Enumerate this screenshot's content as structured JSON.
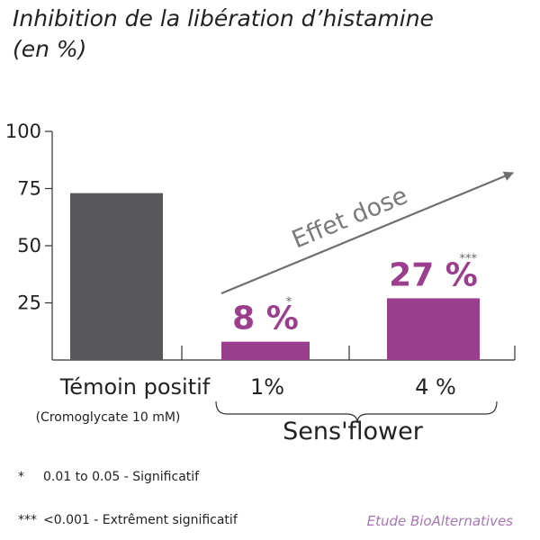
{
  "title": {
    "line1": "Inhibition de la libération d’histamine",
    "line2": "(en %)"
  },
  "colors": {
    "control": "#58585a",
    "product": "#9b3e8e",
    "arrow": "#6f6f6f",
    "source": "#a777b4"
  },
  "chart_data": {
    "type": "bar",
    "ylim": [
      0,
      100
    ],
    "yticks": [
      "25",
      "50",
      "75",
      "100"
    ],
    "categories": [
      "Témoin positif",
      "1%",
      "4 %"
    ],
    "values": [
      73,
      8,
      27
    ],
    "bars": [
      {
        "label": "Témoin positif",
        "sublabel": "(Cromoglycate 10 mM)",
        "value": 73,
        "color_key": "control",
        "data_label": "",
        "star": ""
      },
      {
        "label": "1%",
        "sublabel": "",
        "value": 8,
        "color_key": "product",
        "data_label": "8 %",
        "star": "*"
      },
      {
        "label": "4 %",
        "sublabel": "",
        "value": 27,
        "color_key": "product",
        "data_label": "27 %",
        "star": "***"
      }
    ],
    "group_label": "Sens'flower",
    "annotation": "Effet dose"
  },
  "footnotes": [
    {
      "symbol": "*",
      "text": "0.01 to 0.05 - Significatif"
    },
    {
      "symbol": "***",
      "text": "<0.001 - Extrêment significatif"
    }
  ],
  "source": "Etude BioAlternatives"
}
